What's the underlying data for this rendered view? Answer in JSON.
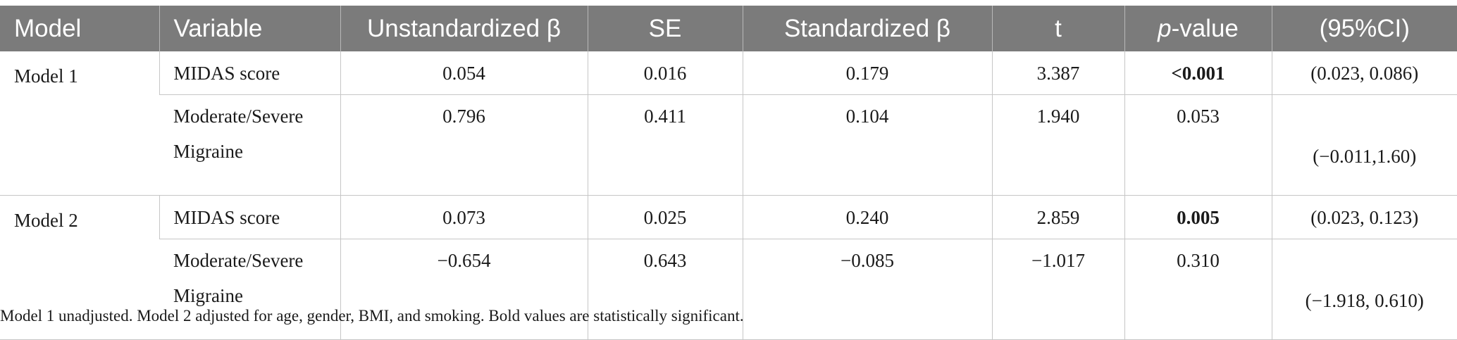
{
  "header": {
    "model": "Model",
    "variable": "Variable",
    "unstd_beta": "Unstandardized β",
    "se": "SE",
    "std_beta": "Standardized β",
    "t": "t",
    "p_italic": "p",
    "p_rest": "-value",
    "ci": "(95%CI)"
  },
  "rows": [
    {
      "model": "Model 1",
      "variable_line1": "MIDAS score",
      "variable_line2": "",
      "unstd_beta": "0.054",
      "se": "0.016",
      "std_beta": "0.179",
      "t": "3.387",
      "p_value": "<0.001",
      "p_bold": true,
      "ci": "(0.023, 0.086)"
    },
    {
      "model": "",
      "variable_line1": "Moderate/Severe",
      "variable_line2": "Migraine",
      "unstd_beta": "0.796",
      "se": "0.411",
      "std_beta": "0.104",
      "t": "1.940",
      "p_value": "0.053",
      "p_bold": false,
      "ci": "(−0.011,1.60)"
    },
    {
      "model": "Model 2",
      "variable_line1": "MIDAS score",
      "variable_line2": "",
      "unstd_beta": "0.073",
      "se": "0.025",
      "std_beta": "0.240",
      "t": "2.859",
      "p_value": "0.005",
      "p_bold": true,
      "ci": "(0.023, 0.123)"
    },
    {
      "model": "",
      "variable_line1": "Moderate/Severe",
      "variable_line2": "Migraine",
      "unstd_beta": "−0.654",
      "se": "0.643",
      "std_beta": "−0.085",
      "t": "−1.017",
      "p_value": "0.310",
      "p_bold": false,
      "ci": "(−1.918, 0.610)"
    }
  ],
  "footnote": "Model 1 unadjusted. Model 2 adjusted for age, gender, BMI, and smoking. Bold values are statistically significant."
}
